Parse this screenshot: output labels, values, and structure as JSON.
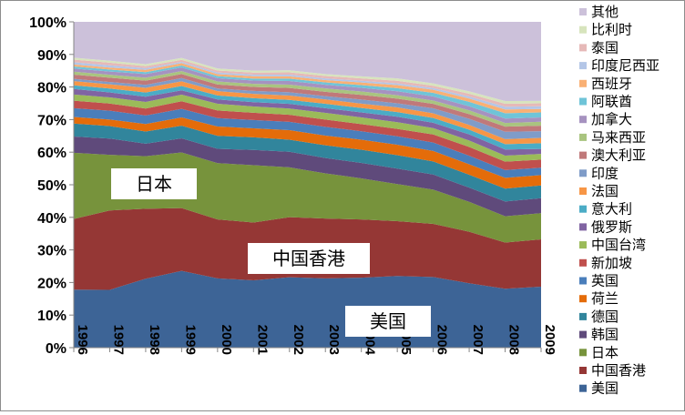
{
  "chart_data": {
    "type": "area",
    "stacked": "percent",
    "title": "",
    "xlabel": "",
    "ylabel": "",
    "ylim": [
      0,
      100
    ],
    "grid": false,
    "legend_position": "right",
    "x": [
      "1996",
      "1997",
      "1998",
      "1999",
      "2000",
      "2001",
      "2002",
      "2003",
      "2004",
      "2005",
      "2006",
      "2007",
      "2008",
      "2009"
    ],
    "y_ticks": [
      "0%",
      "10%",
      "20%",
      "30%",
      "40%",
      "50%",
      "60%",
      "70%",
      "80%",
      "90%",
      "100%"
    ],
    "series": [
      {
        "name": "美国",
        "color": "#3d6496",
        "values": [
          17.8,
          17.7,
          21.0,
          23.2,
          20.8,
          20.3,
          21.2,
          20.7,
          20.8,
          21.3,
          21.0,
          19.0,
          17.5,
          18.2
        ]
      },
      {
        "name": "中国香港",
        "color": "#953735",
        "values": [
          21.7,
          24.3,
          21.3,
          19.0,
          17.7,
          17.4,
          18.1,
          17.9,
          17.3,
          16.3,
          15.8,
          15.2,
          13.7,
          14.1
        ]
      },
      {
        "name": "日本",
        "color": "#77933c",
        "values": [
          20.3,
          17.0,
          16.0,
          16.8,
          16.9,
          17.3,
          15.0,
          13.5,
          12.2,
          11.0,
          10.2,
          8.8,
          7.8,
          7.8
        ]
      },
      {
        "name": "韩国",
        "color": "#5f4a7b",
        "values": [
          5.0,
          5.0,
          3.8,
          4.3,
          4.3,
          4.6,
          4.7,
          4.6,
          4.6,
          4.6,
          4.5,
          4.2,
          4.4,
          4.5
        ]
      },
      {
        "name": "德国",
        "color": "#31859c",
        "values": [
          4.0,
          3.8,
          3.7,
          3.8,
          3.9,
          3.8,
          3.6,
          3.8,
          3.9,
          4.0,
          3.9,
          3.8,
          3.8,
          3.8
        ]
      },
      {
        "name": "荷兰",
        "color": "#e46c0a",
        "values": [
          2.0,
          2.0,
          2.3,
          2.5,
          2.8,
          2.7,
          2.9,
          2.9,
          3.0,
          3.1,
          3.1,
          3.1,
          3.2,
          3.1
        ]
      },
      {
        "name": "英国",
        "color": "#4a7ebb",
        "values": [
          2.7,
          2.7,
          2.6,
          2.6,
          2.5,
          2.5,
          2.5,
          2.6,
          2.5,
          2.5,
          2.5,
          2.5,
          2.3,
          2.2
        ]
      },
      {
        "name": "新加坡",
        "color": "#c0504d",
        "values": [
          2.3,
          2.2,
          2.1,
          2.3,
          2.3,
          2.2,
          2.1,
          2.2,
          2.1,
          2.2,
          2.4,
          2.6,
          2.5,
          2.4
        ]
      },
      {
        "name": "中国台湾",
        "color": "#9bbb59",
        "values": [
          1.9,
          1.9,
          2.0,
          2.0,
          2.0,
          1.9,
          1.9,
          2.0,
          2.0,
          2.0,
          1.9,
          1.9,
          1.8,
          1.7
        ]
      },
      {
        "name": "俄罗斯",
        "color": "#8064a2",
        "values": [
          1.7,
          1.5,
          1.6,
          1.3,
          1.3,
          1.3,
          1.4,
          1.4,
          1.5,
          1.6,
          1.6,
          1.8,
          1.8,
          1.5
        ]
      },
      {
        "name": "意大利",
        "color": "#4bacc6",
        "values": [
          1.1,
          1.2,
          1.3,
          1.3,
          1.2,
          1.2,
          1.2,
          1.3,
          1.3,
          1.4,
          1.4,
          1.4,
          1.6,
          1.7
        ]
      },
      {
        "name": "法国",
        "color": "#f79646",
        "values": [
          1.3,
          1.3,
          1.4,
          1.4,
          1.3,
          1.3,
          1.3,
          1.3,
          1.3,
          1.4,
          1.4,
          1.4,
          1.5,
          1.6
        ]
      },
      {
        "name": "印度",
        "color": "#7f9cc8",
        "values": [
          0.7,
          0.7,
          0.9,
          1.0,
          0.8,
          0.9,
          1.0,
          1.0,
          1.2,
          1.2,
          1.5,
          1.8,
          2.2,
          2.0
        ]
      },
      {
        "name": "澳大利亚",
        "color": "#c0797a",
        "values": [
          1.3,
          1.3,
          1.3,
          1.2,
          1.2,
          1.2,
          1.3,
          1.3,
          1.4,
          1.4,
          1.3,
          1.4,
          1.5,
          1.6
        ]
      },
      {
        "name": "马来西亚",
        "color": "#a9c47f",
        "values": [
          0.9,
          0.9,
          0.9,
          0.9,
          0.9,
          0.9,
          1.0,
          1.0,
          1.0,
          1.0,
          1.0,
          1.1,
          1.1,
          1.2
        ]
      },
      {
        "name": "加拿大",
        "color": "#a692c0",
        "values": [
          1.0,
          1.0,
          1.1,
          1.1,
          1.0,
          1.0,
          1.1,
          1.1,
          1.1,
          1.2,
          1.2,
          1.2,
          1.3,
          1.3
        ]
      },
      {
        "name": "阿联酋",
        "color": "#6fc4d8",
        "values": [
          0.6,
          0.6,
          0.6,
          0.6,
          0.6,
          0.6,
          0.7,
          0.7,
          0.8,
          0.9,
          1.1,
          1.3,
          1.6,
          1.5
        ]
      },
      {
        "name": "西班牙",
        "color": "#f9b074",
        "values": [
          0.6,
          0.6,
          0.7,
          0.7,
          0.6,
          0.7,
          0.7,
          0.7,
          0.8,
          0.9,
          0.9,
          1.0,
          1.1,
          1.0
        ]
      },
      {
        "name": "印度尼西亚",
        "color": "#b4c6e7",
        "values": [
          0.7,
          0.7,
          0.5,
          0.4,
          0.5,
          0.5,
          0.5,
          0.5,
          0.5,
          0.5,
          0.5,
          0.6,
          0.8,
          0.8
        ]
      },
      {
        "name": "泰国",
        "color": "#e6b9b8",
        "values": [
          0.8,
          0.8,
          0.6,
          0.6,
          0.6,
          0.6,
          0.7,
          0.7,
          0.7,
          0.8,
          0.7,
          0.8,
          0.9,
          0.9
        ]
      },
      {
        "name": "比利时",
        "color": "#d7e4bd",
        "values": [
          0.6,
          0.6,
          0.6,
          0.6,
          0.6,
          0.6,
          0.6,
          0.6,
          0.6,
          0.7,
          0.7,
          0.7,
          0.8,
          0.7
        ]
      },
      {
        "name": "其他",
        "color": "#ccc1da",
        "values": [
          11.0,
          11.9,
          12.9,
          10.9,
          14.0,
          14.7,
          14.6,
          15.6,
          16.2,
          16.8,
          18.3,
          20.5,
          23.5,
          23.6
        ]
      }
    ],
    "annotations": [
      {
        "text": "日本",
        "series": "日本"
      },
      {
        "text": "中国香港",
        "series": "中国香港"
      },
      {
        "text": "美国",
        "series": "美国"
      }
    ]
  }
}
